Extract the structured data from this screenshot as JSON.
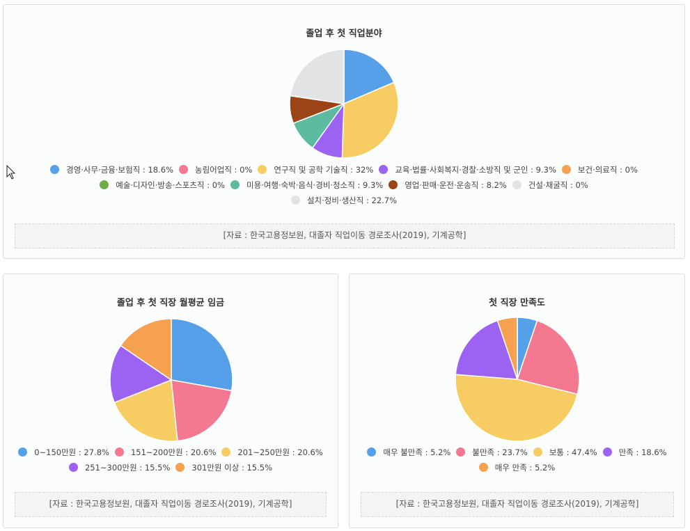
{
  "chart_data": [
    {
      "type": "pie",
      "title": "졸업 후 첫 직업분야",
      "slices": [
        {
          "label": "경영·사무·금융·보험직",
          "value": 18.6,
          "color": "#56a0e9"
        },
        {
          "label": "농림어업직",
          "value": 0,
          "color": "#f4788f"
        },
        {
          "label": "연구직 및 공학 기술직",
          "value": 32,
          "color": "#f7cd63"
        },
        {
          "label": "교육·법률·사회복지·경찰·소방직 및 군인",
          "value": 9.3,
          "color": "#9c63f2"
        },
        {
          "label": "보건·의료직",
          "value": 0,
          "color": "#f5a14f"
        },
        {
          "label": "예술·디자인·방송·스포츠직",
          "value": 0,
          "color": "#6dac46"
        },
        {
          "label": "미용·여행·숙박·음식·경비·청소직",
          "value": 9.3,
          "color": "#5cbba1"
        },
        {
          "label": "영업·판매·운전·운송직",
          "value": 8.2,
          "color": "#9b4516"
        },
        {
          "label": "건설·채굴직",
          "value": 0,
          "color": "#e2e3e4"
        },
        {
          "label": "설치·정비·생산직",
          "value": 22.7,
          "color": "#e2e3e4"
        }
      ],
      "legend_rows": [
        [
          0,
          1,
          2,
          3,
          4
        ],
        [
          5,
          6,
          7,
          8
        ],
        [
          9
        ]
      ],
      "source": "[자료 : 한국고용정보원, 대졸자 직업이동 경로조사(2019), 기계공학]"
    },
    {
      "type": "pie",
      "title": "졸업 후 첫 직장 월평균 임금",
      "slices": [
        {
          "label": "0~150만원",
          "value": 27.8,
          "color": "#56a0e9"
        },
        {
          "label": "151~200만원",
          "value": 20.6,
          "color": "#f4788f"
        },
        {
          "label": "201~250만원",
          "value": 20.6,
          "color": "#f7cd63"
        },
        {
          "label": "251~300만원",
          "value": 15.5,
          "color": "#9c63f2"
        },
        {
          "label": "301만원 이상",
          "value": 15.5,
          "color": "#f5a14f"
        }
      ],
      "legend_rows": [
        [
          0,
          1,
          2
        ],
        [
          3,
          4
        ]
      ],
      "source": "[자료 : 한국고용정보원, 대졸자 직업이동 경로조사(2019), 기계공학]"
    },
    {
      "type": "pie",
      "title": "첫 직장 만족도",
      "slices": [
        {
          "label": "매우 불만족",
          "value": 5.2,
          "color": "#56a0e9"
        },
        {
          "label": "불만족",
          "value": 23.7,
          "color": "#f4788f"
        },
        {
          "label": "보통",
          "value": 47.4,
          "color": "#f7cd63"
        },
        {
          "label": "만족",
          "value": 18.6,
          "color": "#9c63f2"
        },
        {
          "label": "매우 만족",
          "value": 5.2,
          "color": "#f5a14f"
        }
      ],
      "legend_rows": [
        [
          0,
          1,
          2,
          3
        ],
        [
          4
        ]
      ],
      "source": "[자료 : 한국고용정보원, 대졸자 직업이동 경로조사(2019), 기계공학]"
    }
  ]
}
